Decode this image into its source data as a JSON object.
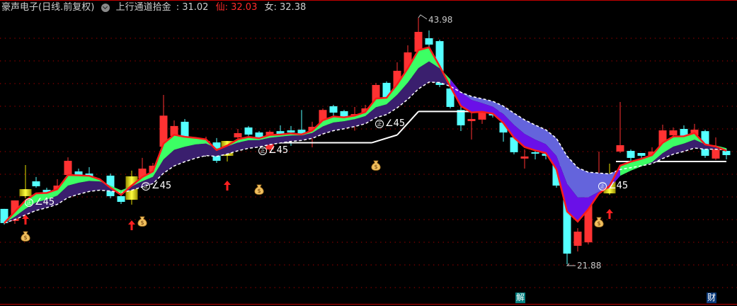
{
  "header": {
    "title": "豪声电子(日线.前复权)",
    "indicator_name": "上行通道拾金",
    "indicator_value": ": 31.02",
    "xian_label": "仙:",
    "xian_value": " 32.03",
    "nv_label": "女:",
    "nv_value": " 32.38"
  },
  "colors": {
    "up": "#ff3232",
    "down": "#54ffff",
    "signal_candle": "#e8e000",
    "fast_line": "#ff1a1a",
    "band_up_fast": "#3cff64",
    "band_up_slow": "#3a1f6e",
    "band_down_fast": "#6a10e8",
    "band_down_slow": "#6464dc",
    "grid": "#8a0000",
    "badge_jie": "#008080",
    "badge_cai": "#0a3a7a"
  },
  "chart_data": {
    "type": "candlestick",
    "ylim": [
      21.88,
      43.98
    ],
    "grid": "dotted-horizontal",
    "candles": [
      [
        26.84,
        26.84,
        25.44,
        25.57,
        "down"
      ],
      [
        25.76,
        27.6,
        25.5,
        27.6,
        "up"
      ],
      [
        27.98,
        30.77,
        27.79,
        28.61,
        "signal"
      ],
      [
        29.31,
        29.7,
        28.74,
        28.87,
        "down"
      ],
      [
        28.55,
        28.74,
        28.1,
        28.3,
        "down"
      ],
      [
        28.49,
        29.5,
        28.42,
        28.93,
        "up"
      ],
      [
        29.88,
        31.46,
        29.76,
        31.15,
        "up"
      ],
      [
        30.2,
        30.45,
        29.57,
        29.82,
        "down"
      ],
      [
        30.01,
        30.58,
        29.7,
        29.76,
        "down"
      ],
      [
        28.99,
        29.44,
        28.93,
        29.18,
        "up"
      ],
      [
        29.82,
        30.01,
        27.79,
        27.98,
        "down"
      ],
      [
        27.98,
        28.1,
        27.28,
        27.47,
        "down"
      ],
      [
        27.66,
        30.27,
        27.22,
        29.76,
        "signal"
      ],
      [
        29.57,
        31.41,
        29.44,
        30.45,
        "up"
      ],
      [
        30.14,
        30.96,
        30.01,
        30.71,
        "up"
      ],
      [
        32.41,
        37.06,
        32.22,
        35.2,
        "up"
      ],
      [
        33.38,
        34.77,
        33.19,
        34.27,
        "up"
      ],
      [
        34.65,
        34.9,
        32.87,
        33.12,
        "down"
      ],
      [
        32.99,
        33.25,
        32.68,
        33.12,
        "up"
      ],
      [
        32.55,
        33.31,
        32.11,
        32.93,
        "up"
      ],
      [
        32.8,
        33.19,
        30.96,
        31.15,
        "down"
      ],
      [
        31.6,
        32.93,
        31.09,
        32.93,
        "signal"
      ],
      [
        33.25,
        34.01,
        33.12,
        33.63,
        "up"
      ],
      [
        34.14,
        34.27,
        33.38,
        33.5,
        "down"
      ],
      [
        33.69,
        33.81,
        32.55,
        33.06,
        "down"
      ],
      [
        32.17,
        33.88,
        31.98,
        33.75,
        "up"
      ],
      [
        33.81,
        34.33,
        33.38,
        33.56,
        "down"
      ],
      [
        33.88,
        34.27,
        32.49,
        33.69,
        "down"
      ],
      [
        33.94,
        35.71,
        32.93,
        33.44,
        "down"
      ],
      [
        33.63,
        34.65,
        32.36,
        34.2,
        "up"
      ],
      [
        33.75,
        35.84,
        33.5,
        35.71,
        "up"
      ],
      [
        36.04,
        36.17,
        35.09,
        35.47,
        "down"
      ],
      [
        35.6,
        35.72,
        34.77,
        34.97,
        "down"
      ],
      [
        35.09,
        35.98,
        33.85,
        35.34,
        "up"
      ],
      [
        35.27,
        36.17,
        35.09,
        35.85,
        "up"
      ],
      [
        36.3,
        38.14,
        36.17,
        37.95,
        "up"
      ],
      [
        38.14,
        38.27,
        36.68,
        36.87,
        "down"
      ],
      [
        37.63,
        39.98,
        37.44,
        39.22,
        "up"
      ],
      [
        38.58,
        41.5,
        38.39,
        40.87,
        "up"
      ],
      [
        40.93,
        43.98,
        40.74,
        42.71,
        "up"
      ],
      [
        42.14,
        42.84,
        41.31,
        41.57,
        "down"
      ],
      [
        41.88,
        42.01,
        37.76,
        37.95,
        "down"
      ],
      [
        37.63,
        37.76,
        35.84,
        35.98,
        "down"
      ],
      [
        35.71,
        36.04,
        33.82,
        34.33,
        "down"
      ],
      [
        34.71,
        36.04,
        33.06,
        34.9,
        "up"
      ],
      [
        34.84,
        35.72,
        34.46,
        35.6,
        "up"
      ],
      [
        35.53,
        35.72,
        35.03,
        35.22,
        "down"
      ],
      [
        34.58,
        34.77,
        32.87,
        33.69,
        "down"
      ],
      [
        33.25,
        33.38,
        31.73,
        31.92,
        "down"
      ],
      [
        31.35,
        32.17,
        30.45,
        31.54,
        "up"
      ],
      [
        31.92,
        32.05,
        31.28,
        31.79,
        "down"
      ],
      [
        31.79,
        31.92,
        31.28,
        31.6,
        "down"
      ],
      [
        30.85,
        31.03,
        28.74,
        28.93,
        "down"
      ],
      [
        28.61,
        28.74,
        21.88,
        22.83,
        "down"
      ],
      [
        23.53,
        25.11,
        23.02,
        24.8,
        "up"
      ],
      [
        23.84,
        28.1,
        23.65,
        27.91,
        "up"
      ],
      [
        29.25,
        31.98,
        29.19,
        29.63,
        "up"
      ],
      [
        28.23,
        30.9,
        28.1,
        29.57,
        "signal"
      ],
      [
        31.98,
        36.42,
        31.85,
        32.55,
        "up"
      ],
      [
        32.04,
        32.17,
        30.84,
        31.41,
        "down"
      ],
      [
        31.85,
        31.85,
        31.09,
        31.6,
        "down"
      ],
      [
        31.54,
        32.36,
        31.09,
        31.98,
        "up"
      ],
      [
        32.36,
        34.39,
        32.22,
        33.88,
        "up"
      ],
      [
        33.44,
        34.14,
        33.31,
        33.88,
        "up"
      ],
      [
        34.01,
        34.33,
        33.19,
        33.38,
        "down"
      ],
      [
        33.44,
        34.46,
        33.19,
        33.94,
        "up"
      ],
      [
        33.81,
        33.94,
        31.41,
        31.6,
        "down"
      ],
      [
        31.35,
        33.25,
        31.22,
        32.24,
        "up"
      ],
      [
        32.04,
        32.24,
        31.28,
        31.66,
        "down"
      ]
    ],
    "support_line": [
      {
        "from": 18,
        "to": 19,
        "price": 31.6
      },
      {
        "from": 22,
        "to": 34.6,
        "price": 32.77
      },
      {
        "from": 34.6,
        "to": 37,
        "price_from": 32.77,
        "price_to": 33.47
      },
      {
        "from": 37,
        "to": 39,
        "price_from": 33.47,
        "price_to": 35.57
      },
      {
        "from": 39,
        "to": 47,
        "price": 35.57
      },
      {
        "from": 57.6,
        "to": 68,
        "price": 31.09
      }
    ],
    "high_label": "43.98",
    "low_label": "21.88"
  },
  "signals": {
    "angle_icon_text": "正",
    "angle_text": "∠45",
    "angle_labels": [
      2,
      13,
      24,
      35,
      56
    ],
    "money_bags": [
      2,
      13,
      24,
      35,
      56
    ],
    "money_icon_text": "$",
    "up_arrows": [
      2,
      12,
      21,
      57
    ]
  },
  "bottom_badges": [
    {
      "text": "解",
      "index": 48.6
    },
    {
      "text": "财",
      "index": 66.6
    }
  ]
}
